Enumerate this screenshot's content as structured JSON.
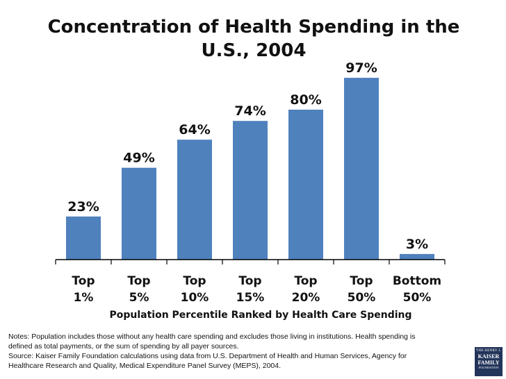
{
  "chart_data": {
    "type": "bar",
    "title": "Concentration of Health Spending in the U.S., 2004",
    "xlabel": "Population Percentile Ranked by Health Care Spending",
    "ylabel": "",
    "categories": [
      [
        "Top",
        "1%"
      ],
      [
        "Top",
        "5%"
      ],
      [
        "Top",
        "10%"
      ],
      [
        "Top",
        "15%"
      ],
      [
        "Top",
        "20%"
      ],
      [
        "Top",
        "50%"
      ],
      [
        "Bottom",
        "50%"
      ]
    ],
    "values": [
      23,
      49,
      64,
      74,
      80,
      97,
      3
    ],
    "data_labels": [
      "23%",
      "49%",
      "64%",
      "74%",
      "80%",
      "97%",
      "3%"
    ],
    "ylim": [
      0,
      100
    ],
    "grid": false,
    "bar_color": "#4f81bd"
  },
  "notes": [
    "Notes: Population includes those without any health care spending and excludes those living in institutions.  Health spending is",
    "defined as total payments, or the sum of spending by all payer sources.",
    "Source: Kaiser Family Foundation calculations using data from U.S. Department of Health and Human Services, Agency for",
    "Healthcare Research and Quality, Medical Expenditure Panel Survey (MEPS), 2004."
  ],
  "logo": {
    "line1": "THE HENRY J.",
    "line2a": "KAISER",
    "line2b": "FAMILY",
    "line3": "FOUNDATION"
  }
}
